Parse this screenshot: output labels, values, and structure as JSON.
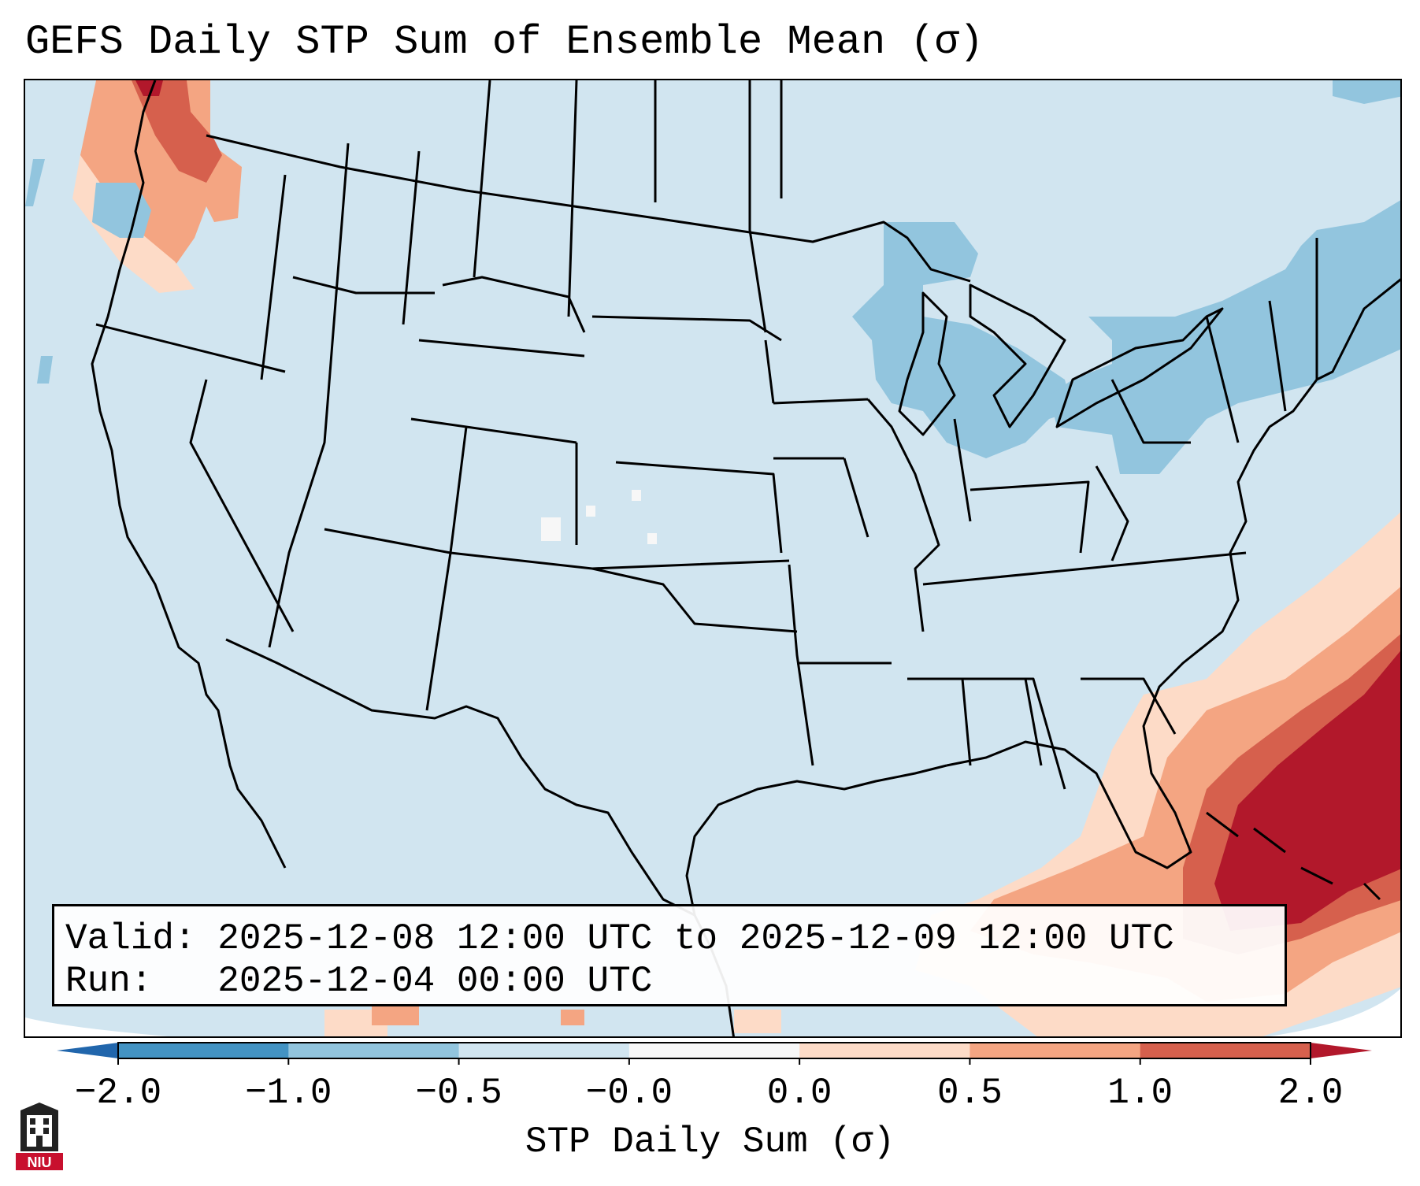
{
  "title": "GEFS Daily STP Sum of Ensemble Mean (σ)",
  "info": {
    "valid_line": "Valid: 2025-12-08 12:00 UTC to 2025-12-09 12:00 UTC",
    "run_line": "Run:   2025-12-04 00:00 UTC"
  },
  "colorbar": {
    "title": "STP Daily Sum (σ)",
    "ticks": [
      "−2.0",
      "−1.0",
      "−0.5",
      "−0.0",
      "0.0",
      "0.5",
      "1.0",
      "2.0"
    ],
    "colors": [
      "#4393c3",
      "#92c5de",
      "#d1e5f0",
      "#f7f7f7",
      "#fddbc7",
      "#f4a582",
      "#d6604d"
    ],
    "under_color": "#2166ac",
    "over_color": "#b2182b"
  },
  "map": {
    "background_value_color": "#d1e5f0",
    "outside_color": "#ffffff",
    "region": "Contiguous United States"
  },
  "logo": {
    "text": "NIU",
    "color": "#c8102e"
  }
}
